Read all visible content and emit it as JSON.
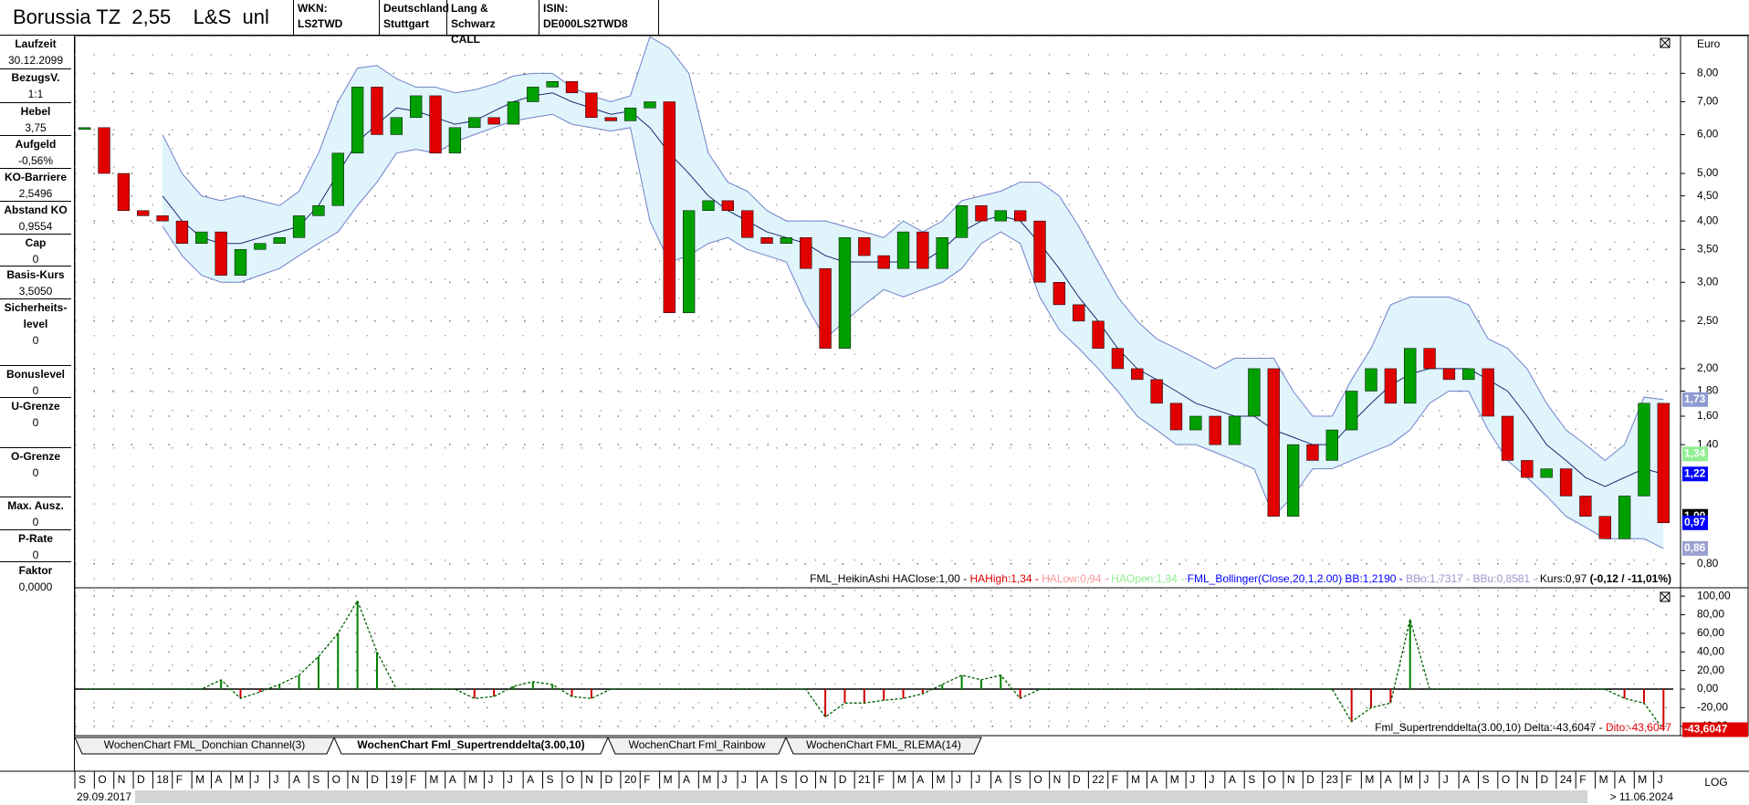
{
  "header": {
    "title": "Borussia TZ  2,55    L&S  unl",
    "cells": [
      [
        "WKN: LS2TWD"
      ],
      [
        "Deutschland",
        "Stuttgart"
      ],
      [
        "Lang & Schwarz",
        "CALL"
      ],
      [
        "ISIN: DE000LS2TWD8"
      ]
    ]
  },
  "sidebar": [
    {
      "label": "Laufzeit",
      "value": "30.12.2099"
    },
    {
      "label": "BezugsV.",
      "value": "1:1"
    },
    {
      "label": "Hebel",
      "value": "3,75"
    },
    {
      "label": "Aufgeld",
      "value": "-0,56%"
    },
    {
      "label": "KO-Barriere",
      "value": "2,5496"
    },
    {
      "label": "Abstand KO",
      "value": "0,9554"
    },
    {
      "label": "Cap",
      "value": "0"
    },
    {
      "label": "Basis-Kurs",
      "value": "3,5050"
    },
    {
      "label": "Sicherheits-level",
      "value": "0"
    },
    {
      "label": "Bonuslevel",
      "value": "0"
    },
    {
      "label": "U-Grenze",
      "value": "0"
    },
    {
      "label": "O-Grenze",
      "value": "0"
    },
    {
      "label": "Max. Ausz.",
      "value": "0"
    },
    {
      "label": "P-Rate",
      "value": "0"
    },
    {
      "label": "Faktor",
      "value": "0,0000"
    }
  ],
  "tabs": [
    "WochenChart FML_Donchian Channel(3)",
    "WochenChart Fml_Supertrenddelta(3.00,10)",
    "WochenChart Fml_Rainbow",
    "WochenChart FML_RLEMA(14)"
  ],
  "active_tab": 1,
  "footer": {
    "start": "29.09.2017",
    "end": "> 11.06.2024",
    "scale": "LOG"
  },
  "chart_data": [
    {
      "type": "candlestick",
      "unit": "Euro",
      "ylog": true,
      "grid": true,
      "categories": [
        "S",
        "O",
        "N",
        "D",
        "18",
        "F",
        "M",
        "A",
        "M",
        "J",
        "J",
        "A",
        "S",
        "O",
        "N",
        "D",
        "19",
        "F",
        "M",
        "A",
        "M",
        "J",
        "J",
        "A",
        "S",
        "O",
        "N",
        "D",
        "20",
        "F",
        "M",
        "A",
        "M",
        "J",
        "J",
        "A",
        "S",
        "O",
        "N",
        "D",
        "21",
        "F",
        "M",
        "A",
        "M",
        "J",
        "J",
        "A",
        "S",
        "O",
        "N",
        "D",
        "22",
        "F",
        "M",
        "A",
        "M",
        "J",
        "J",
        "A",
        "S",
        "O",
        "N",
        "D",
        "23",
        "F",
        "M",
        "A",
        "M",
        "J",
        "J",
        "A",
        "S",
        "O",
        "N",
        "D",
        "24",
        "F",
        "M",
        "A",
        "M",
        "J"
      ],
      "values": [
        6.2,
        5.0,
        4.2,
        4.1,
        4.0,
        3.6,
        3.8,
        3.1,
        3.5,
        3.6,
        3.7,
        4.1,
        4.3,
        5.5,
        7.5,
        6.0,
        6.5,
        7.2,
        5.5,
        6.2,
        6.5,
        6.3,
        7.0,
        7.5,
        7.7,
        7.3,
        6.5,
        6.4,
        6.8,
        7.0,
        2.6,
        4.2,
        4.4,
        4.2,
        3.7,
        3.6,
        3.7,
        3.2,
        2.2,
        3.7,
        3.4,
        3.2,
        3.8,
        3.2,
        3.7,
        4.3,
        4.0,
        4.2,
        4.0,
        3.0,
        2.7,
        2.5,
        2.2,
        2.0,
        1.9,
        1.7,
        1.5,
        1.6,
        1.4,
        1.6,
        2.0,
        1.0,
        1.4,
        1.3,
        1.5,
        1.8,
        2.0,
        1.7,
        2.2,
        2.0,
        1.9,
        2.0,
        1.6,
        1.3,
        1.2,
        1.25,
        1.1,
        1.0,
        0.9,
        1.1,
        1.7,
        0.97
      ],
      "up_color": "#00a000",
      "down_color": "#e00000",
      "bb_upper": [
        null,
        null,
        null,
        null,
        6.0,
        5.0,
        4.5,
        4.4,
        4.5,
        4.4,
        4.3,
        4.6,
        5.5,
        7.0,
        8.2,
        8.3,
        7.8,
        7.5,
        7.5,
        7.3,
        7.4,
        7.6,
        7.9,
        8.0,
        8.0,
        7.5,
        7.2,
        7.0,
        7.2,
        9.5,
        9.0,
        8.0,
        5.5,
        4.8,
        4.6,
        4.2,
        4.0,
        4.0,
        4.0,
        3.9,
        3.8,
        3.7,
        4.0,
        3.8,
        4.0,
        4.4,
        4.5,
        4.6,
        4.8,
        4.8,
        4.5,
        3.9,
        3.3,
        2.8,
        2.5,
        2.3,
        2.2,
        2.1,
        2.0,
        2.1,
        2.1,
        2.1,
        1.8,
        1.6,
        1.6,
        1.9,
        2.2,
        2.7,
        2.8,
        2.8,
        2.8,
        2.7,
        2.3,
        2.2,
        2.0,
        1.7,
        1.5,
        1.4,
        1.3,
        1.4,
        1.75,
        1.73
      ],
      "bb_middle": [
        null,
        null,
        null,
        null,
        4.5,
        4.0,
        3.7,
        3.6,
        3.6,
        3.7,
        3.8,
        3.9,
        4.3,
        5.0,
        5.8,
        6.3,
        6.8,
        6.7,
        6.5,
        6.3,
        6.4,
        6.7,
        7.0,
        7.2,
        7.3,
        7.0,
        6.8,
        6.6,
        6.7,
        6.2,
        5.5,
        5.0,
        4.5,
        4.2,
        4.0,
        3.8,
        3.7,
        3.6,
        3.4,
        3.3,
        3.3,
        3.3,
        3.3,
        3.3,
        3.5,
        3.8,
        4.0,
        4.1,
        4.0,
        3.6,
        3.2,
        2.8,
        2.5,
        2.2,
        2.0,
        1.9,
        1.8,
        1.7,
        1.65,
        1.6,
        1.6,
        1.5,
        1.45,
        1.4,
        1.4,
        1.55,
        1.7,
        1.85,
        1.95,
        2.0,
        2.0,
        2.0,
        1.9,
        1.8,
        1.6,
        1.4,
        1.3,
        1.2,
        1.15,
        1.2,
        1.25,
        1.22
      ],
      "bb_lower": [
        null,
        null,
        null,
        null,
        3.9,
        3.4,
        3.1,
        3.0,
        3.0,
        3.1,
        3.2,
        3.4,
        3.6,
        3.8,
        4.3,
        4.8,
        5.5,
        5.6,
        5.5,
        5.8,
        6.0,
        6.2,
        6.4,
        6.5,
        6.6,
        6.3,
        6.2,
        6.1,
        6.2,
        4.0,
        3.3,
        3.4,
        3.6,
        3.7,
        3.5,
        3.4,
        3.3,
        2.7,
        2.3,
        2.5,
        2.7,
        2.9,
        2.8,
        2.9,
        3.0,
        3.2,
        3.6,
        3.8,
        3.6,
        2.8,
        2.4,
        2.2,
        2.0,
        1.8,
        1.6,
        1.5,
        1.4,
        1.4,
        1.35,
        1.3,
        1.25,
        1.0,
        1.1,
        1.25,
        1.25,
        1.3,
        1.35,
        1.4,
        1.5,
        1.7,
        1.8,
        1.8,
        1.5,
        1.3,
        1.2,
        1.1,
        1.0,
        0.95,
        0.9,
        0.9,
        0.9,
        0.86
      ],
      "bb_band_color": "#e0f4fc",
      "bb_edge_color": "#7080c8",
      "bb_middle_color": "#1a2a6c",
      "ylim": [
        0.715,
        9.55
      ],
      "yticks": [
        {
          "value": 8,
          "label": "8,00"
        },
        {
          "value": 7,
          "label": "7,00"
        },
        {
          "value": 6,
          "label": "6,00"
        },
        {
          "value": 5,
          "label": "5,00"
        },
        {
          "value": 4.5,
          "label": "4,50"
        },
        {
          "value": 4,
          "label": "4,00"
        },
        {
          "value": 3.5,
          "label": "3,50"
        },
        {
          "value": 3,
          "label": "3,00"
        },
        {
          "value": 2.5,
          "label": "2,50"
        },
        {
          "value": 2,
          "label": "2,00"
        },
        {
          "value": 1.8,
          "label": "1,80"
        },
        {
          "value": 1.6,
          "label": "1,60"
        },
        {
          "value": 1.4,
          "label": "1,40"
        },
        {
          "value": 0.8,
          "label": "0,80"
        }
      ],
      "markers": [
        {
          "value": 1.73,
          "label": "1,73",
          "bg": "#8f9bd0",
          "fg": "#ffffff"
        },
        {
          "value": 1.34,
          "label": "1,34",
          "bg": "#90ee90",
          "fg": "#ffffff"
        },
        {
          "value": 1.22,
          "label": "1,22",
          "bg": "#0000ff",
          "fg": "#ffffff"
        },
        {
          "value": 1.0,
          "label": "1,00",
          "bg": "#000000",
          "fg": "#ffffff"
        },
        {
          "value": 0.97,
          "label": "0,97",
          "bg": "#0000ff",
          "fg": "#ffffff"
        },
        {
          "value": 0.86,
          "label": "0,86",
          "bg": "#9aa0d0",
          "fg": "#ffffff"
        }
      ],
      "legend": [
        {
          "text": "FML_HeikinAshi HAClose:1,00 - ",
          "color": "#000000"
        },
        {
          "text": "HAHigh:1,34 - ",
          "color": "#e00000"
        },
        {
          "text": "HALow:0,94 - ",
          "color": "#ff9999"
        },
        {
          "text": "HAOpen:1,34 - ",
          "color": "#90ee90"
        },
        {
          "text": "FML_Bollinger(Close,20,1,2.00) BB:1,2190 - ",
          "color": "#0000ff"
        },
        {
          "text": "BBo:1,7317 - ",
          "color": "#9999cc"
        },
        {
          "text": "BBu:0,8581 - ",
          "color": "#9999cc"
        },
        {
          "text": "Kurs:0,97 ",
          "color": "#000000"
        },
        {
          "text": "(-0,12 / -11,01%)",
          "color": "#000000",
          "bold": true
        }
      ]
    },
    {
      "type": "bar",
      "grid": true,
      "values": [
        0,
        0,
        0,
        0,
        0,
        0,
        0,
        10,
        -10,
        -3,
        5,
        15,
        35,
        60,
        95,
        40,
        0,
        0,
        0,
        0,
        -10,
        -8,
        3,
        8,
        5,
        -8,
        -10,
        0,
        0,
        0,
        0,
        0,
        0,
        0,
        0,
        0,
        0,
        0,
        -30,
        -15,
        -15,
        -12,
        -10,
        -5,
        5,
        15,
        10,
        15,
        -10,
        0,
        0,
        0,
        0,
        0,
        0,
        0,
        0,
        0,
        0,
        0,
        0,
        0,
        0,
        0,
        0,
        -35,
        -20,
        -15,
        75,
        0,
        0,
        0,
        0,
        0,
        0,
        0,
        0,
        0,
        0,
        -10,
        -15,
        -43.6047
      ],
      "pos_color": "#008000",
      "neg_color": "#d00000",
      "line_color": "#006000",
      "ylim": [
        -50,
        107
      ],
      "yticks": [
        {
          "value": 100,
          "label": "100,00"
        },
        {
          "value": 80,
          "label": "80,00"
        },
        {
          "value": 60,
          "label": "60,00"
        },
        {
          "value": 40,
          "label": "40,00"
        },
        {
          "value": 20,
          "label": "20,00"
        },
        {
          "value": 0,
          "label": "0,00"
        },
        {
          "value": -20,
          "label": "-20,00"
        },
        {
          "value": -40,
          "label": "-40,00"
        }
      ],
      "markers": [
        {
          "value": -43.6047,
          "label": "-43,6047",
          "bg": "#e00000",
          "fg": "#ffffff"
        }
      ],
      "legend": [
        {
          "text": "Fml_Supertrenddelta(3.00,10) Delta:-43,6047 - ",
          "color": "#000000"
        },
        {
          "text": "Dito:-43,6047",
          "color": "#e00000"
        }
      ]
    }
  ]
}
